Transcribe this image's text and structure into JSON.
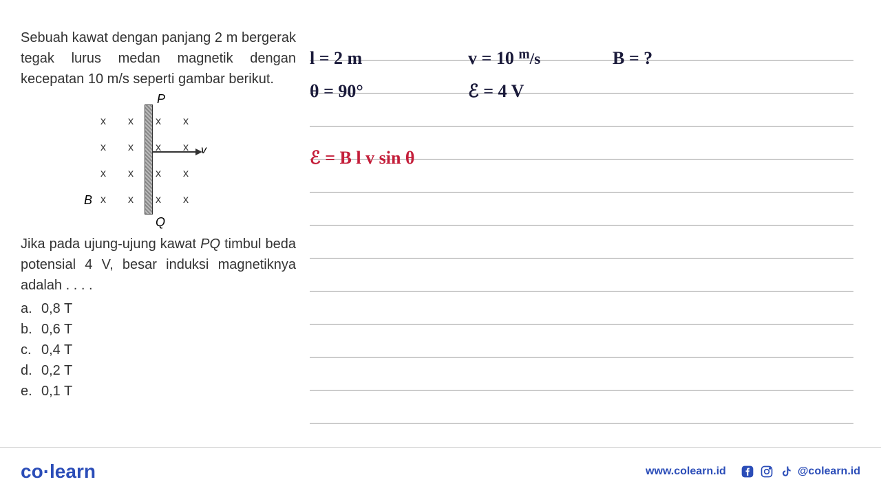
{
  "problem": {
    "text_top": "Sebuah kawat dengan panjang 2 m bergerak tegak lurus medan magnetik dengan kecepatan 10 m/s seperti gambar berikut.",
    "text_bottom": "Jika pada ujung-ujung kawat PQ timbul beda potensial 4 V, besar induksi magnetiknya adalah . . . .",
    "diagram": {
      "label_p": "P",
      "label_q": "Q",
      "label_b": "B",
      "label_v": "v"
    },
    "options": [
      {
        "label": "a.",
        "value": "0,8 T"
      },
      {
        "label": "b.",
        "value": "0,6 T"
      },
      {
        "label": "c.",
        "value": "0,4 T"
      },
      {
        "label": "d.",
        "value": "0,2 T"
      },
      {
        "label": "e.",
        "value": "0,1 T"
      }
    ]
  },
  "handwriting": {
    "given_l": "l = 2 m",
    "given_theta": "θ = 90°",
    "given_v": "v = 10 ",
    "given_v_unit_top": "m",
    "given_v_unit_bottom": "/s",
    "given_e": "ℰ = 4 V",
    "find_b": "B = ?",
    "formula": "ℰ = B l v sin θ",
    "colors": {
      "black": "#1a1a3a",
      "red": "#c41e3a"
    }
  },
  "ruled_count": 12,
  "footer": {
    "logo_left": "co",
    "logo_right": "learn",
    "url": "www.colearn.id",
    "handle": "@colearn.id"
  },
  "layout": {
    "ruled_line_color": "#999999",
    "background": "#ffffff"
  }
}
